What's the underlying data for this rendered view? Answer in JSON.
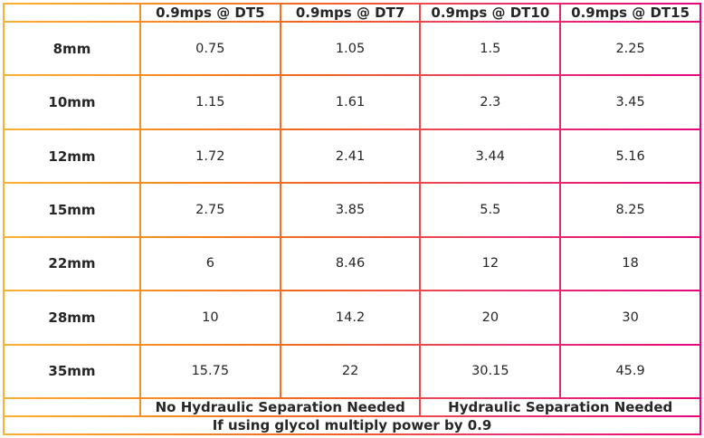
{
  "table": {
    "columns": [
      "",
      "0.9mps @ DT5",
      "0.9mps @ DT7",
      "0.9mps @ DT10",
      "0.9mps @ DT15"
    ],
    "rows": [
      {
        "label": "8mm",
        "values": [
          "0.75",
          "1.05",
          "1.5",
          "2.25"
        ]
      },
      {
        "label": "10mm",
        "values": [
          "1.15",
          "1.61",
          "2.3",
          "3.45"
        ]
      },
      {
        "label": "12mm",
        "values": [
          "1.72",
          "2.41",
          "3.44",
          "5.16"
        ]
      },
      {
        "label": "15mm",
        "values": [
          "2.75",
          "3.85",
          "5.5",
          "8.25"
        ]
      },
      {
        "label": "22mm",
        "values": [
          "6",
          "8.46",
          "12",
          "18"
        ]
      },
      {
        "label": "28mm",
        "values": [
          "10",
          "14.2",
          "20",
          "30"
        ]
      },
      {
        "label": "35mm",
        "values": [
          "15.75",
          "22",
          "30.15",
          "45.9"
        ]
      }
    ],
    "footer": {
      "no_separation": "No Hydraulic Separation Needed",
      "separation": "Hydraulic Separation Needed",
      "glycol_note": "If using glycol multiply power by 0.9"
    }
  },
  "colors": {
    "gradient_start": "#F9B233",
    "gradient_mid": "#F26522",
    "gradient_end": "#E5067E",
    "cell_background": "#FFFFFF",
    "text": "#262626"
  },
  "chart_data": {
    "type": "table",
    "columns": [
      "",
      "0.9mps @ DT5",
      "0.9mps @ DT7",
      "0.9mps @ DT10",
      "0.9mps @ DT15"
    ],
    "rows": [
      [
        "8mm",
        0.75,
        1.05,
        1.5,
        2.25
      ],
      [
        "10mm",
        1.15,
        1.61,
        2.3,
        3.45
      ],
      [
        "12mm",
        1.72,
        2.41,
        3.44,
        5.16
      ],
      [
        "15mm",
        2.75,
        3.85,
        5.5,
        8.25
      ],
      [
        "22mm",
        6,
        8.46,
        12,
        18
      ],
      [
        "28mm",
        10,
        14.2,
        20,
        30
      ],
      [
        "35mm",
        15.75,
        22,
        30.15,
        45.9
      ]
    ],
    "annotations": [
      "No Hydraulic Separation Needed (applies to DT5 and DT7 columns)",
      "Hydraulic Separation Needed (applies to DT10 and DT15 columns)",
      "If using glycol multiply power by 0.9"
    ]
  }
}
